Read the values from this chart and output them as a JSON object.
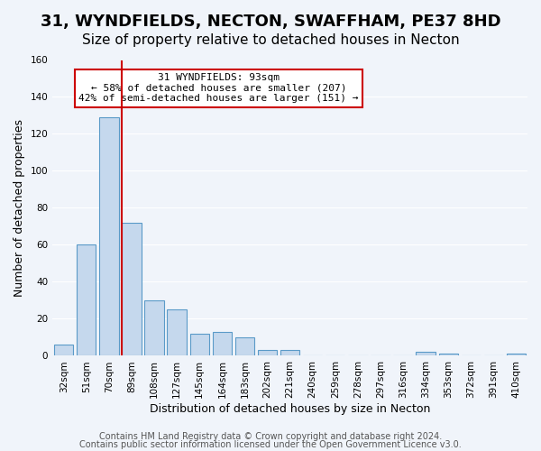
{
  "title": "31, WYNDFIELDS, NECTON, SWAFFHAM, PE37 8HD",
  "subtitle": "Size of property relative to detached houses in Necton",
  "xlabel": "Distribution of detached houses by size in Necton",
  "ylabel": "Number of detached properties",
  "bin_labels": [
    "32sqm",
    "51sqm",
    "70sqm",
    "89sqm",
    "108sqm",
    "127sqm",
    "145sqm",
    "164sqm",
    "183sqm",
    "202sqm",
    "221sqm",
    "240sqm",
    "259sqm",
    "278sqm",
    "297sqm",
    "316sqm",
    "334sqm",
    "353sqm",
    "372sqm",
    "391sqm",
    "410sqm"
  ],
  "bar_heights": [
    6,
    60,
    129,
    72,
    30,
    25,
    12,
    13,
    10,
    3,
    3,
    0,
    0,
    0,
    0,
    0,
    2,
    1,
    0,
    0,
    1
  ],
  "bar_color": "#c5d8ed",
  "bar_edge_color": "#5a9ac8",
  "vline_color": "#cc0000",
  "annotation_box_text": "31 WYNDFIELDS: 93sqm\n← 58% of detached houses are smaller (207)\n42% of semi-detached houses are larger (151) →",
  "annotation_box_edge_color": "#cc0000",
  "ylim": [
    0,
    160
  ],
  "yticks": [
    0,
    20,
    40,
    60,
    80,
    100,
    120,
    140,
    160
  ],
  "footer1": "Contains HM Land Registry data © Crown copyright and database right 2024.",
  "footer2": "Contains public sector information licensed under the Open Government Licence v3.0.",
  "bg_color": "#f0f4fa",
  "grid_color": "#ffffff",
  "title_fontsize": 13,
  "subtitle_fontsize": 11,
  "axis_fontsize": 9,
  "tick_fontsize": 7.5,
  "footer_fontsize": 7
}
